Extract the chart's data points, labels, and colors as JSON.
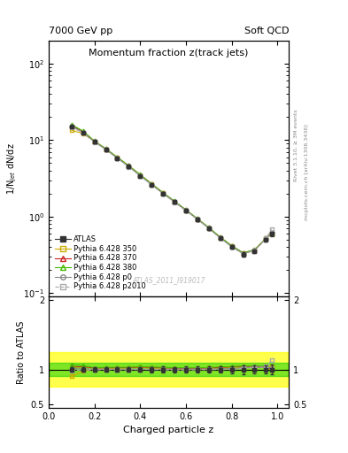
{
  "title_main": "Momentum fraction z(track jets)",
  "title_top_left": "7000 GeV pp",
  "title_top_right": "Soft QCD",
  "ylabel_main": "1/N$_{jet}$ dN/dz",
  "ylabel_ratio": "Ratio to ATLAS",
  "xlabel": "Charged particle z",
  "watermark": "ATLAS_2011_I919017",
  "rivet_label": "Rivet 3.1.10, ≥ 3M events",
  "mcplots_label": "mcplots.cern.ch [arXiv:1306.3436]",
  "x": [
    0.1,
    0.15,
    0.2,
    0.25,
    0.3,
    0.35,
    0.4,
    0.45,
    0.5,
    0.55,
    0.6,
    0.65,
    0.7,
    0.75,
    0.8,
    0.85,
    0.9,
    0.95,
    0.975
  ],
  "atlas_y": [
    15.0,
    12.5,
    9.5,
    7.5,
    5.8,
    4.5,
    3.4,
    2.6,
    2.0,
    1.55,
    1.2,
    0.92,
    0.7,
    0.52,
    0.4,
    0.32,
    0.35,
    0.5,
    0.6
  ],
  "atlas_yerr": [
    0.5,
    0.4,
    0.3,
    0.25,
    0.2,
    0.15,
    0.12,
    0.1,
    0.08,
    0.06,
    0.05,
    0.04,
    0.03,
    0.025,
    0.02,
    0.02,
    0.02,
    0.03,
    0.04
  ],
  "p350_y": [
    13.5,
    12.2,
    9.6,
    7.6,
    5.9,
    4.6,
    3.5,
    2.65,
    2.02,
    1.56,
    1.21,
    0.93,
    0.71,
    0.53,
    0.41,
    0.33,
    0.36,
    0.52,
    0.62
  ],
  "p370_y": [
    15.5,
    13.0,
    9.7,
    7.7,
    5.95,
    4.62,
    3.52,
    2.68,
    2.05,
    1.58,
    1.22,
    0.935,
    0.715,
    0.535,
    0.415,
    0.335,
    0.365,
    0.52,
    0.6
  ],
  "p380_y": [
    16.0,
    13.2,
    9.75,
    7.72,
    5.98,
    4.64,
    3.54,
    2.69,
    2.06,
    1.59,
    1.23,
    0.94,
    0.72,
    0.54,
    0.416,
    0.336,
    0.368,
    0.525,
    0.605
  ],
  "p0_y": [
    15.2,
    12.6,
    9.55,
    7.55,
    5.82,
    4.52,
    3.42,
    2.61,
    2.01,
    1.56,
    1.21,
    0.925,
    0.705,
    0.525,
    0.405,
    0.328,
    0.36,
    0.515,
    0.615
  ],
  "p2010_y": [
    14.8,
    12.4,
    9.45,
    7.48,
    5.78,
    4.48,
    3.4,
    2.6,
    1.99,
    1.54,
    1.19,
    0.915,
    0.698,
    0.52,
    0.4,
    0.325,
    0.36,
    0.52,
    0.68
  ],
  "ylim_main": [
    0.09,
    200
  ],
  "ylim_ratio": [
    0.45,
    2.05
  ],
  "series_colors": {
    "atlas": "#333333",
    "p350": "#ccaa00",
    "p370": "#cc2222",
    "p380": "#44bb00",
    "p0": "#888888",
    "p2010": "#aaaaaa"
  },
  "band_yellow": [
    0.75,
    1.25
  ],
  "band_green": [
    0.9,
    1.1
  ]
}
